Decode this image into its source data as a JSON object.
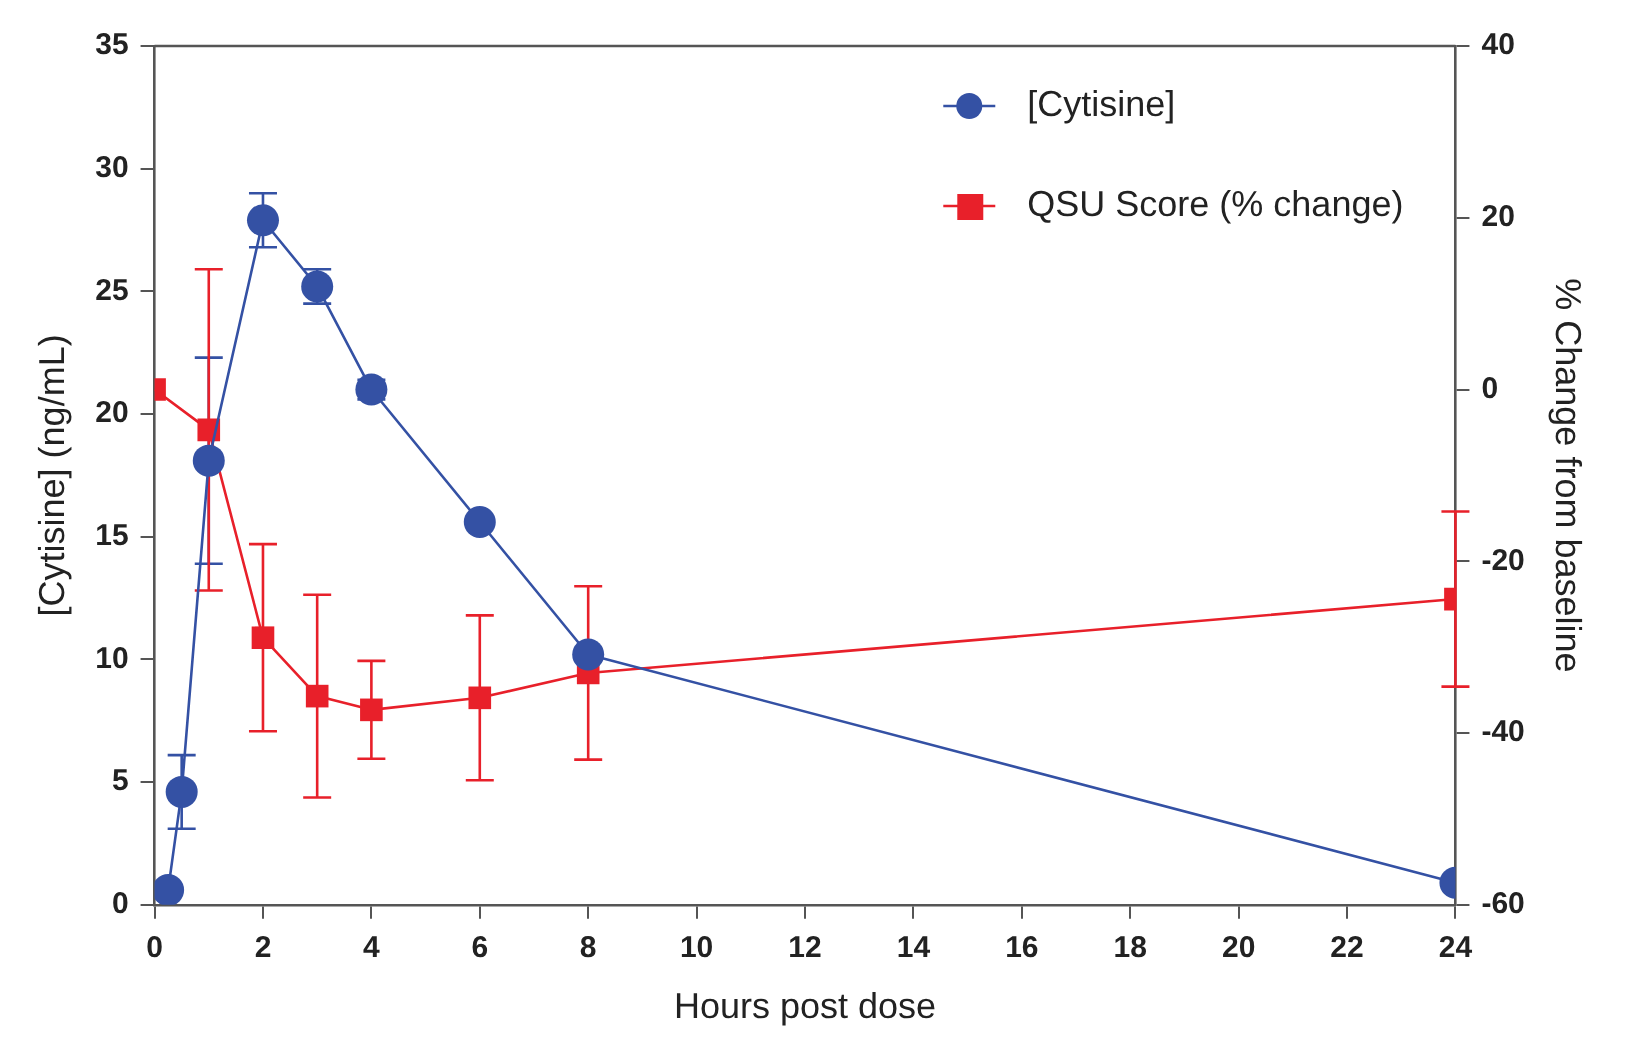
{
  "chart_data": {
    "type": "line",
    "xlabel": "Hours post dose",
    "ylabel": "[Cytisine] (ng/mL)",
    "y2label": "% Change from baseline",
    "xlim": [
      0,
      24
    ],
    "xticks": [
      0,
      2,
      4,
      6,
      8,
      10,
      12,
      14,
      16,
      18,
      20,
      22,
      24
    ],
    "ylim": [
      0,
      35
    ],
    "yticks": [
      0,
      5,
      10,
      15,
      20,
      25,
      30,
      35
    ],
    "y2lim": [
      -60,
      40
    ],
    "y2ticks": [
      -60,
      -40,
      -20,
      0,
      20,
      40
    ],
    "grid": false,
    "legend": "top right",
    "series": [
      {
        "name": "[Cytisine]",
        "color": "#3451a4",
        "marker": "circle",
        "x": [
          0.25,
          0.5,
          1,
          2,
          3,
          4,
          6,
          8,
          24
        ],
        "values": [
          0.6,
          4.6,
          18.1,
          27.9,
          25.2,
          21.0,
          15.6,
          10.2,
          0.9
        ],
        "errors": [
          null,
          1.5,
          4.2,
          1.1,
          0.7,
          0.4,
          null,
          null,
          null
        ]
      },
      {
        "name": "QSU Score (% change)",
        "color": "#e8202a",
        "marker": "square",
        "axis": "y2",
        "x": [
          0,
          1,
          2,
          3,
          4,
          6,
          8,
          24
        ],
        "values": [
          0,
          -4.7,
          -28.9,
          -35.7,
          -37.3,
          -35.9,
          -33.0,
          -24.4
        ],
        "errors": [
          null,
          18.7,
          10.9,
          11.8,
          5.7,
          9.6,
          10.1,
          10.2
        ]
      }
    ]
  }
}
